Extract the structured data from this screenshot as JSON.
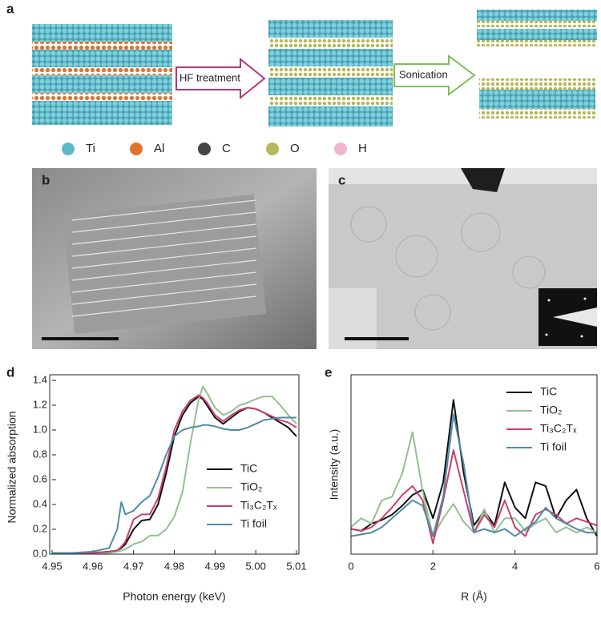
{
  "panels": [
    "a",
    "b",
    "c"
  ],
  "schematic": {
    "steps": [
      "HF treatment",
      "Sonication"
    ],
    "atoms": [
      {
        "symbol": "Ti",
        "color": "#5fb8c8"
      },
      {
        "symbol": "Al",
        "color": "#e0732c"
      },
      {
        "symbol": "C",
        "color": "#444444"
      },
      {
        "symbol": "O",
        "color": "#b5b85a"
      },
      {
        "symbol": "H",
        "color": "#f0b6cf"
      }
    ]
  },
  "chart_data": [
    {
      "type": "line",
      "label": "d",
      "xlabel": "Photon energy (keV)",
      "ylabel": "Normalized absorption",
      "x": [
        4.95,
        4.955,
        4.96,
        4.964,
        4.966,
        4.967,
        4.968,
        4.97,
        4.972,
        4.974,
        4.976,
        4.978,
        4.98,
        4.982,
        4.984,
        4.986,
        4.987,
        4.988,
        4.99,
        4.992,
        4.994,
        4.996,
        4.998,
        5.0,
        5.002,
        5.004,
        5.006,
        5.008,
        5.01
      ],
      "series": [
        {
          "name": "TiC",
          "color": "#111111",
          "values": [
            0.01,
            0.01,
            0.01,
            0.02,
            0.03,
            0.05,
            0.08,
            0.2,
            0.27,
            0.28,
            0.4,
            0.65,
            0.95,
            1.12,
            1.22,
            1.27,
            1.25,
            1.2,
            1.1,
            1.05,
            1.1,
            1.15,
            1.18,
            1.17,
            1.14,
            1.1,
            1.06,
            1.02,
            0.95
          ]
        },
        {
          "name": "TiO₂",
          "color": "#93c08f",
          "values": [
            0.01,
            0.01,
            0.01,
            0.01,
            0.02,
            0.03,
            0.04,
            0.08,
            0.1,
            0.15,
            0.15,
            0.2,
            0.3,
            0.5,
            0.9,
            1.25,
            1.35,
            1.3,
            1.18,
            1.12,
            1.15,
            1.2,
            1.22,
            1.25,
            1.27,
            1.27,
            1.2,
            1.12,
            1.05
          ]
        },
        {
          "name": "Ti₃C₂Tₓ",
          "color": "#c8416a",
          "values": [
            0.01,
            0.01,
            0.01,
            0.02,
            0.03,
            0.06,
            0.1,
            0.28,
            0.32,
            0.32,
            0.45,
            0.7,
            1.0,
            1.15,
            1.24,
            1.28,
            1.26,
            1.22,
            1.12,
            1.07,
            1.12,
            1.16,
            1.18,
            1.17,
            1.14,
            1.11,
            1.08,
            1.06,
            1.02
          ]
        },
        {
          "name": "Ti foil",
          "color": "#4f8ba6",
          "values": [
            0.01,
            0.01,
            0.02,
            0.05,
            0.2,
            0.42,
            0.32,
            0.35,
            0.42,
            0.47,
            0.62,
            0.8,
            0.95,
            1.0,
            1.02,
            1.03,
            1.04,
            1.04,
            1.03,
            1.01,
            1.0,
            1.0,
            1.02,
            1.05,
            1.08,
            1.09,
            1.1,
            1.1,
            1.1
          ]
        }
      ],
      "xlim": [
        4.95,
        5.01
      ],
      "xticks": [
        4.95,
        4.96,
        4.97,
        4.98,
        4.99,
        {
          "value": 5.0,
          "label": "5.00"
        },
        5.01
      ],
      "ylim": [
        0,
        1.4
      ],
      "yticks": [
        {
          "value": 0,
          "label": "0.0"
        },
        {
          "value": 0.2,
          "label": "0.2"
        },
        {
          "value": 0.4,
          "label": "0.4"
        },
        {
          "value": 0.6,
          "label": "0.6"
        },
        {
          "value": 0.8,
          "label": "0.8"
        },
        {
          "value": 1.0,
          "label": "1.0"
        },
        {
          "value": 1.2,
          "label": "1.2"
        },
        {
          "value": 1.4,
          "label": "1.4"
        }
      ],
      "legend": "right"
    },
    {
      "type": "line",
      "label": "e",
      "xlabel": "R (Å)",
      "ylabel": "Intensity (a.u.)",
      "x": [
        0,
        0.25,
        0.5,
        0.75,
        1,
        1.25,
        1.5,
        1.75,
        2,
        2.25,
        2.5,
        2.75,
        3,
        3.25,
        3.5,
        3.75,
        4,
        4.25,
        4.5,
        4.75,
        5,
        5.25,
        5.5,
        5.75,
        6
      ],
      "series": [
        {
          "name": "TiC",
          "color": "#111111",
          "values": [
            0.14,
            0.13,
            0.17,
            0.19,
            0.22,
            0.27,
            0.33,
            0.36,
            0.2,
            0.4,
            0.86,
            0.45,
            0.16,
            0.24,
            0.16,
            0.4,
            0.26,
            0.2,
            0.4,
            0.38,
            0.2,
            0.3,
            0.36,
            0.2,
            0.1
          ]
        },
        {
          "name": "TiO₂",
          "color": "#93c08f",
          "values": [
            0.15,
            0.2,
            0.17,
            0.3,
            0.32,
            0.45,
            0.68,
            0.35,
            0.1,
            0.2,
            0.28,
            0.18,
            0.12,
            0.25,
            0.12,
            0.2,
            0.2,
            0.13,
            0.17,
            0.2,
            0.12,
            0.15,
            0.12,
            0.15,
            0.12
          ]
        },
        {
          "name": "Ti₃C₂Tₓ",
          "color": "#c8416a",
          "values": [
            0.14,
            0.13,
            0.15,
            0.2,
            0.26,
            0.33,
            0.38,
            0.3,
            0.06,
            0.3,
            0.58,
            0.35,
            0.12,
            0.22,
            0.15,
            0.3,
            0.15,
            0.1,
            0.22,
            0.25,
            0.22,
            0.17,
            0.2,
            0.18,
            0.16
          ]
        },
        {
          "name": "Ti foil",
          "color": "#4f8ba6",
          "values": [
            0.1,
            0.11,
            0.12,
            0.15,
            0.2,
            0.25,
            0.3,
            0.27,
            0.1,
            0.32,
            0.78,
            0.5,
            0.12,
            0.14,
            0.12,
            0.14,
            0.1,
            0.14,
            0.18,
            0.26,
            0.2,
            0.17,
            0.14,
            0.12,
            0.12
          ]
        }
      ],
      "xlim": [
        0,
        6
      ],
      "xticks": [
        0,
        2,
        4,
        6
      ],
      "ylim": [
        0,
        1
      ],
      "legend": "upper right"
    }
  ]
}
